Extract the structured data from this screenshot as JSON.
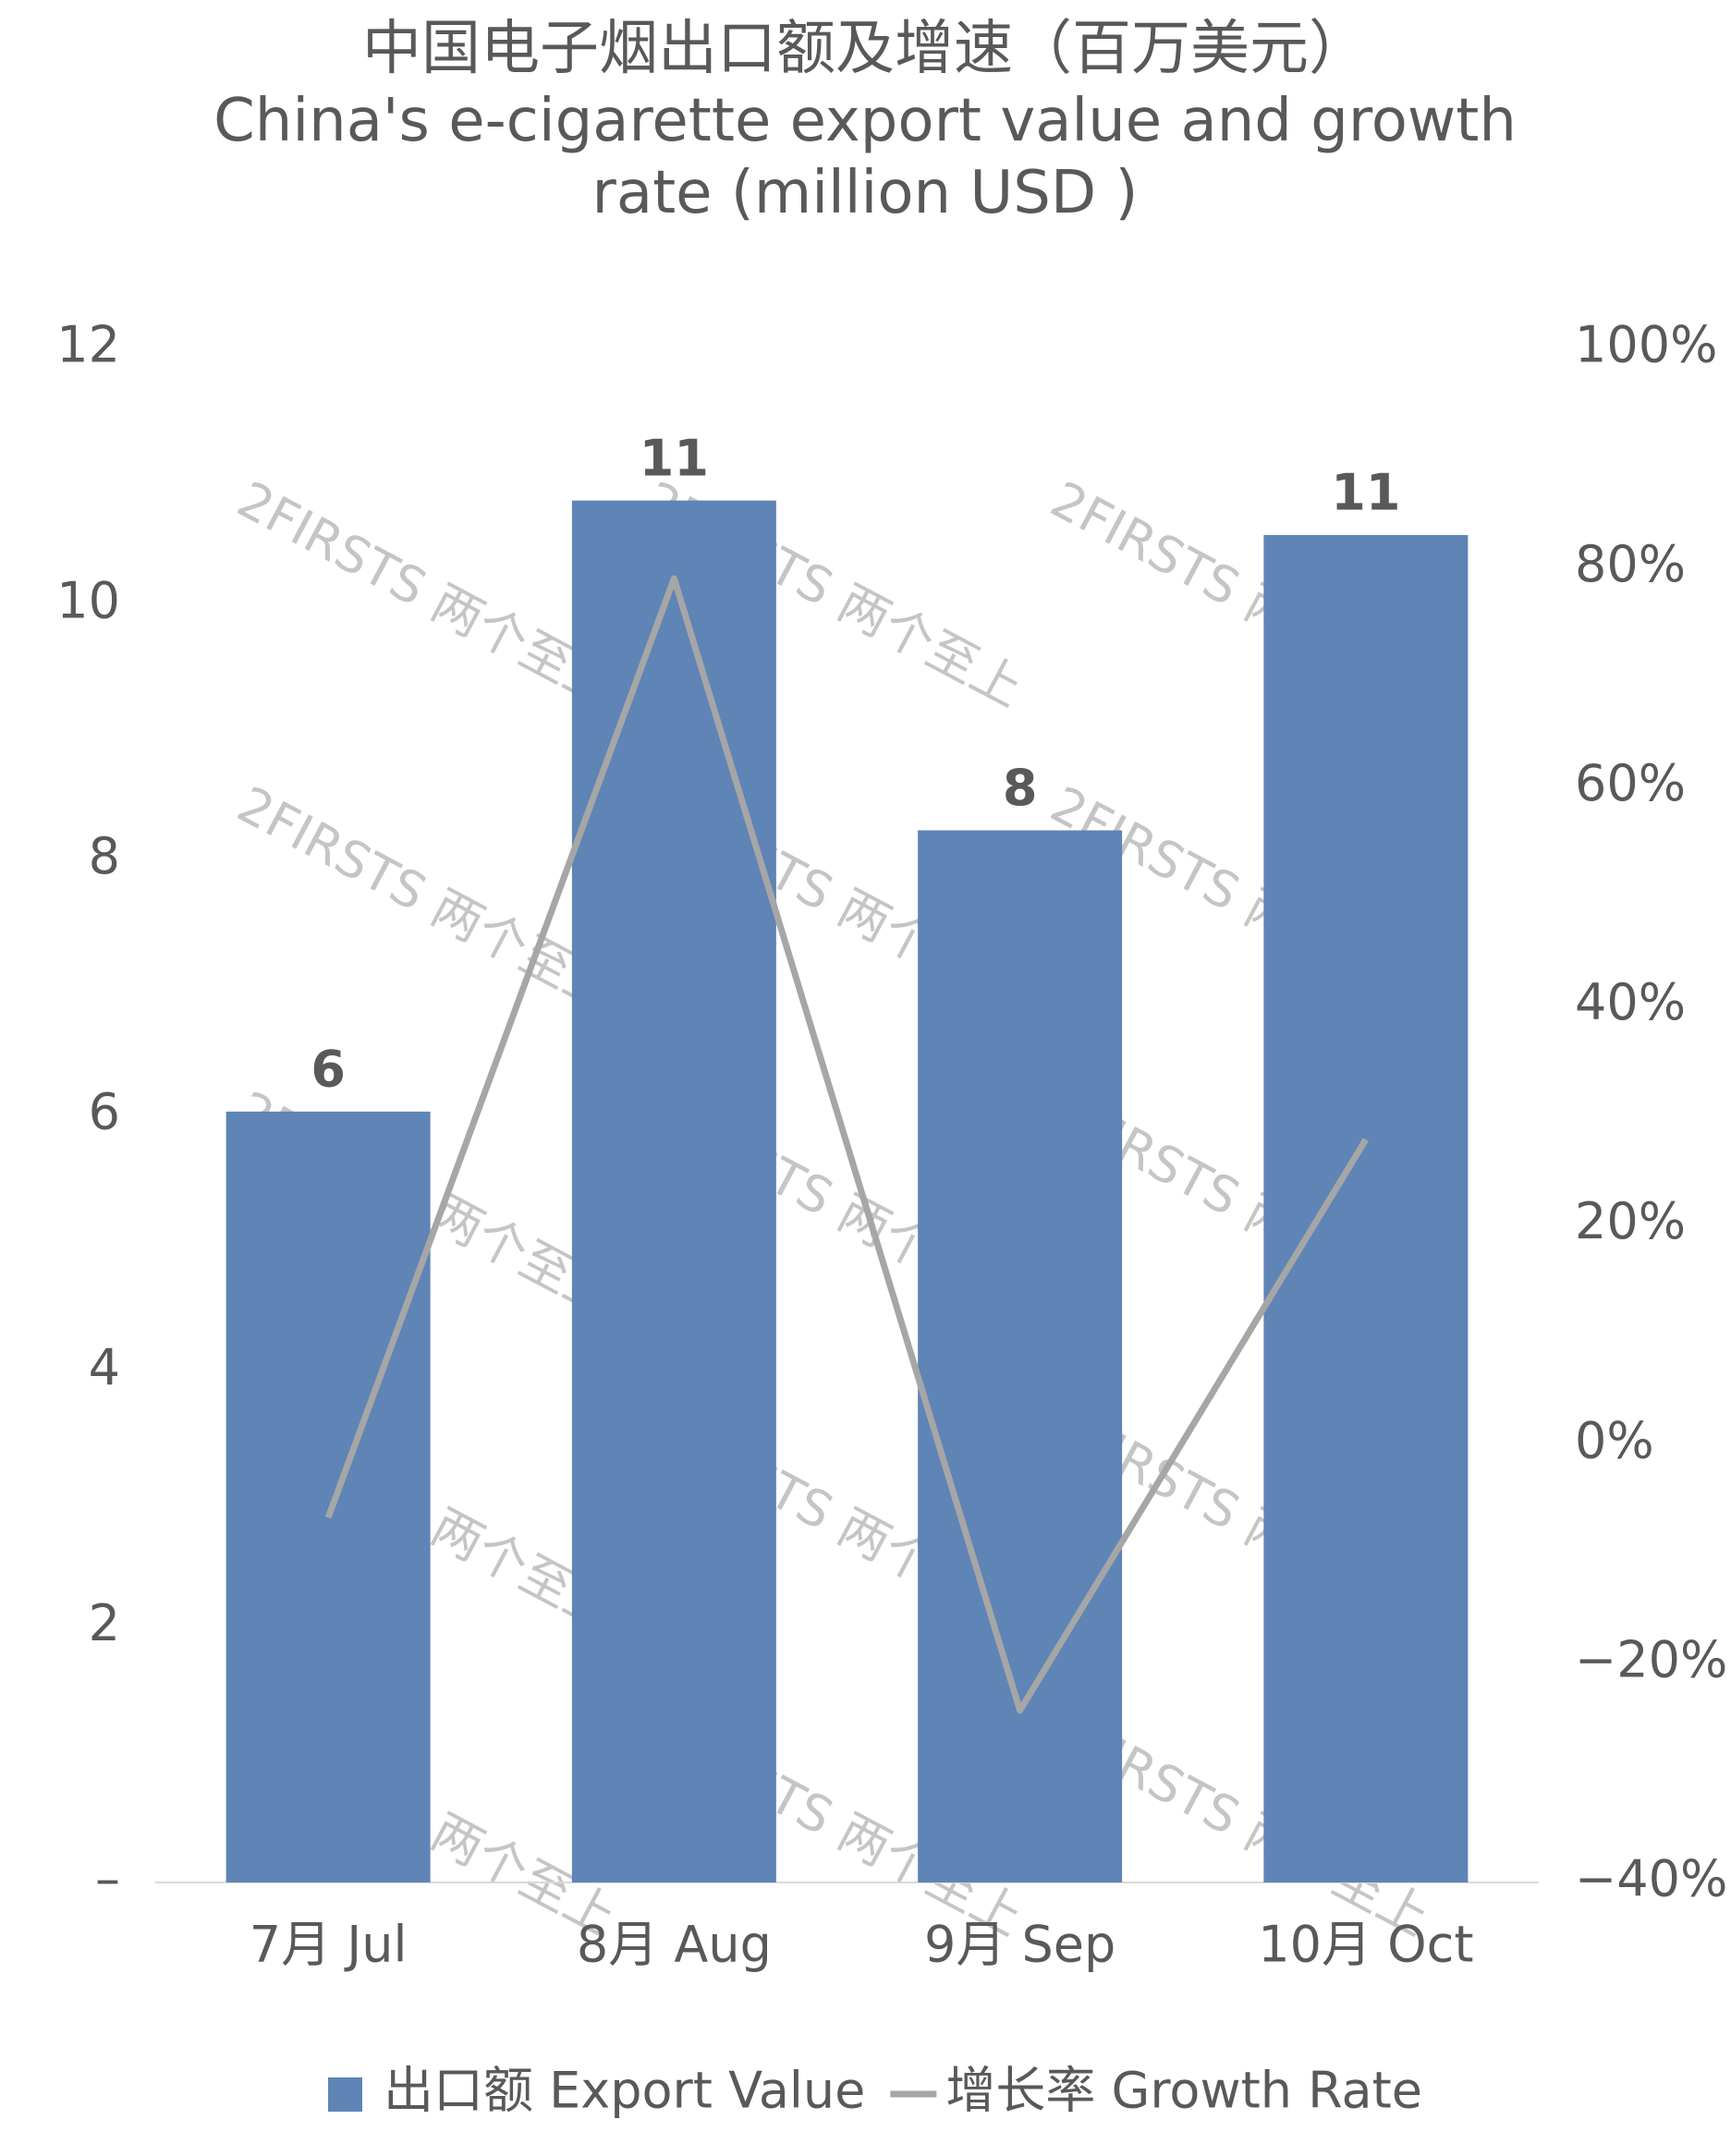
{
  "chart_data": {
    "type": "bar",
    "title": "中国电子烟出口额及增速（百万美元）",
    "subtitle": "China's e-cigarette export value and growth rate (million USD )",
    "watermark": "2FIRSTS 两个至上",
    "categories": [
      "7月 Jul",
      "8月 Aug",
      "9月 Sep",
      "10月 Oct"
    ],
    "series": [
      {
        "name": "出口额 Export Value",
        "type": "bar",
        "color": "#5f84b6",
        "values": [
          6.03,
          10.81,
          8.23,
          10.54
        ],
        "value_labels": [
          "6",
          "11",
          "8",
          "11"
        ]
      },
      {
        "name": "增长率 Growth Rate",
        "type": "line",
        "color": "#a6a6a6",
        "axis": "y2",
        "values": [
          -6.7,
          79,
          -24.3,
          27.8
        ]
      }
    ],
    "ylim": [
      0,
      12
    ],
    "yticks": [
      {
        "value": 0,
        "label": "–"
      },
      2,
      4,
      6,
      8,
      10,
      12
    ],
    "y2lim": [
      -40,
      100
    ],
    "y2ticks": [
      {
        "value": -40,
        "label": "−40%"
      },
      {
        "value": -20,
        "label": "−20%"
      },
      {
        "value": 0,
        "label": "0%"
      },
      {
        "value": 20,
        "label": "20%"
      },
      {
        "value": 40,
        "label": "40%"
      },
      {
        "value": 60,
        "label": "60%"
      },
      {
        "value": 80,
        "label": "80%"
      },
      {
        "value": 100,
        "label": "100%"
      }
    ],
    "grid": false,
    "legend": "bottom"
  }
}
